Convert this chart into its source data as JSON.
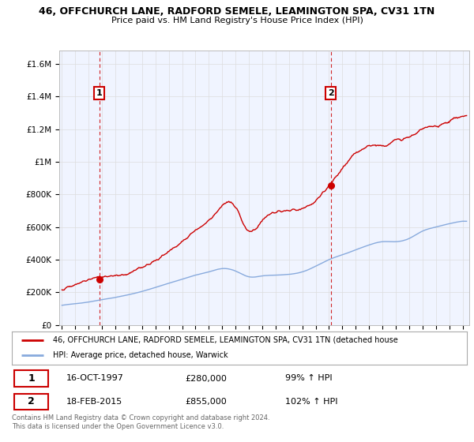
{
  "title_line1": "46, OFFCHURCH LANE, RADFORD SEMELE, LEAMINGTON SPA, CV31 1TN",
  "title_line2": "Price paid vs. HM Land Registry's House Price Index (HPI)",
  "ylabel_ticks": [
    "£0",
    "£200K",
    "£400K",
    "£600K",
    "£800K",
    "£1M",
    "£1.2M",
    "£1.4M",
    "£1.6M"
  ],
  "ylabel_values": [
    0,
    200000,
    400000,
    600000,
    800000,
    1000000,
    1200000,
    1400000,
    1600000
  ],
  "ylim": [
    0,
    1680000
  ],
  "xlim_start": 1994.8,
  "xlim_end": 2025.5,
  "xtick_years": [
    1995,
    1996,
    1997,
    1998,
    1999,
    2000,
    2001,
    2002,
    2003,
    2004,
    2005,
    2006,
    2007,
    2008,
    2009,
    2010,
    2011,
    2012,
    2013,
    2014,
    2015,
    2016,
    2017,
    2018,
    2019,
    2020,
    2021,
    2022,
    2023,
    2024,
    2025
  ],
  "sale1_x": 1997.79,
  "sale1_y": 280000,
  "sale1_label": "1",
  "sale2_x": 2015.12,
  "sale2_y": 855000,
  "sale2_label": "2",
  "sale_color": "#cc0000",
  "hpi_color": "#88aadd",
  "vline_color": "#cc0000",
  "annotation_box_color": "#cc0000",
  "legend_label_red": "46, OFFCHURCH LANE, RADFORD SEMELE, LEAMINGTON SPA, CV31 1TN (detached house",
  "legend_label_blue": "HPI: Average price, detached house, Warwick",
  "table_row1": [
    "1",
    "16-OCT-1997",
    "£280,000",
    "99% ↑ HPI"
  ],
  "table_row2": [
    "2",
    "18-FEB-2015",
    "£855,000",
    "102% ↑ HPI"
  ],
  "footer": "Contains HM Land Registry data © Crown copyright and database right 2024.\nThis data is licensed under the Open Government Licence v3.0.",
  "bg_color": "#ffffff",
  "grid_color": "#dddddd"
}
